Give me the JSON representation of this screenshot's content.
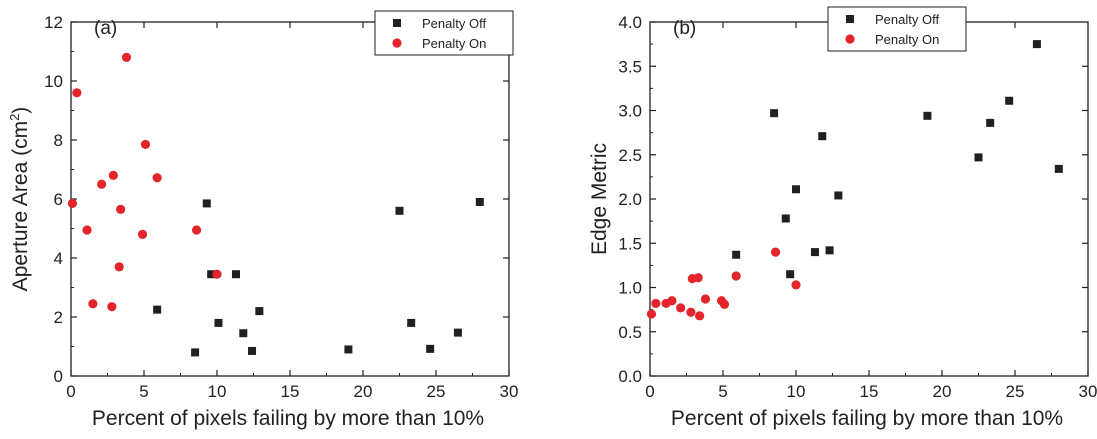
{
  "chart_data": [
    {
      "type": "scatter",
      "panel_label": "(a)",
      "xlabel": "Percent of pixels failing by more than 10%",
      "ylabel_main": "Aperture Area (cm",
      "ylabel_sup": "2",
      "ylabel_close": ")",
      "xlim": [
        0,
        30
      ],
      "ylim": [
        0,
        12
      ],
      "xticks": [
        "0",
        "5",
        "10",
        "15",
        "20",
        "25",
        "30"
      ],
      "yticks": [
        "0",
        "2",
        "4",
        "6",
        "8",
        "10",
        "12"
      ],
      "grid": false,
      "legend_position": "top-right",
      "series": [
        {
          "name": "Penalty Off",
          "marker": "square",
          "color": "#231f20",
          "points": [
            [
              5.9,
              2.25
            ],
            [
              8.5,
              0.8
            ],
            [
              9.3,
              5.85
            ],
            [
              9.6,
              3.45
            ],
            [
              10.1,
              1.8
            ],
            [
              11.3,
              3.45
            ],
            [
              11.8,
              1.45
            ],
            [
              12.4,
              0.85
            ],
            [
              12.9,
              2.2
            ],
            [
              19.0,
              0.9
            ],
            [
              22.5,
              5.6
            ],
            [
              23.3,
              1.8
            ],
            [
              24.6,
              0.92
            ],
            [
              26.5,
              1.47
            ],
            [
              28.0,
              5.9
            ]
          ]
        },
        {
          "name": "Penalty On",
          "marker": "circle",
          "color": "#e5232b",
          "points": [
            [
              0.1,
              5.85
            ],
            [
              0.4,
              9.6
            ],
            [
              1.1,
              4.95
            ],
            [
              1.5,
              2.45
            ],
            [
              2.1,
              6.5
            ],
            [
              2.8,
              2.35
            ],
            [
              2.9,
              6.8
            ],
            [
              3.3,
              3.7
            ],
            [
              3.4,
              5.65
            ],
            [
              3.8,
              10.8
            ],
            [
              4.9,
              4.8
            ],
            [
              5.1,
              7.85
            ],
            [
              5.9,
              6.72
            ],
            [
              8.6,
              4.95
            ],
            [
              10.0,
              3.45
            ]
          ]
        }
      ]
    },
    {
      "type": "scatter",
      "panel_label": "(b)",
      "xlabel": "Percent of pixels failing by more than 10%",
      "ylabel_main": "Edge Metric",
      "ylabel_sup": "",
      "ylabel_close": "",
      "xlim": [
        0,
        30
      ],
      "ylim": [
        0,
        4
      ],
      "xticks": [
        "0",
        "5",
        "10",
        "15",
        "20",
        "25",
        "30"
      ],
      "yticks": [
        "0.0",
        "0.5",
        "1.0",
        "1.5",
        "2.0",
        "2.5",
        "3.0",
        "3.5",
        "4.0"
      ],
      "grid": false,
      "legend_position": "top-center",
      "series": [
        {
          "name": "Penalty Off",
          "marker": "square",
          "color": "#231f20",
          "points": [
            [
              5.9,
              1.37
            ],
            [
              8.5,
              2.97
            ],
            [
              9.3,
              1.78
            ],
            [
              9.6,
              1.15
            ],
            [
              10.0,
              2.11
            ],
            [
              11.3,
              1.4
            ],
            [
              11.8,
              2.71
            ],
            [
              12.3,
              1.42
            ],
            [
              12.9,
              2.04
            ],
            [
              19.0,
              2.94
            ],
            [
              22.5,
              2.47
            ],
            [
              23.3,
              2.86
            ],
            [
              24.6,
              3.11
            ],
            [
              26.5,
              3.75
            ],
            [
              28.0,
              2.34
            ]
          ]
        },
        {
          "name": "Penalty On",
          "marker": "circle",
          "color": "#e5232b",
          "points": [
            [
              0.1,
              0.7
            ],
            [
              0.4,
              0.82
            ],
            [
              1.1,
              0.82
            ],
            [
              1.5,
              0.85
            ],
            [
              2.1,
              0.77
            ],
            [
              2.8,
              0.72
            ],
            [
              2.9,
              1.1
            ],
            [
              3.3,
              1.11
            ],
            [
              3.4,
              0.68
            ],
            [
              3.8,
              0.87
            ],
            [
              4.9,
              0.85
            ],
            [
              5.1,
              0.81
            ],
            [
              5.9,
              1.13
            ],
            [
              8.6,
              1.4
            ],
            [
              10.0,
              1.03
            ]
          ]
        }
      ]
    }
  ]
}
